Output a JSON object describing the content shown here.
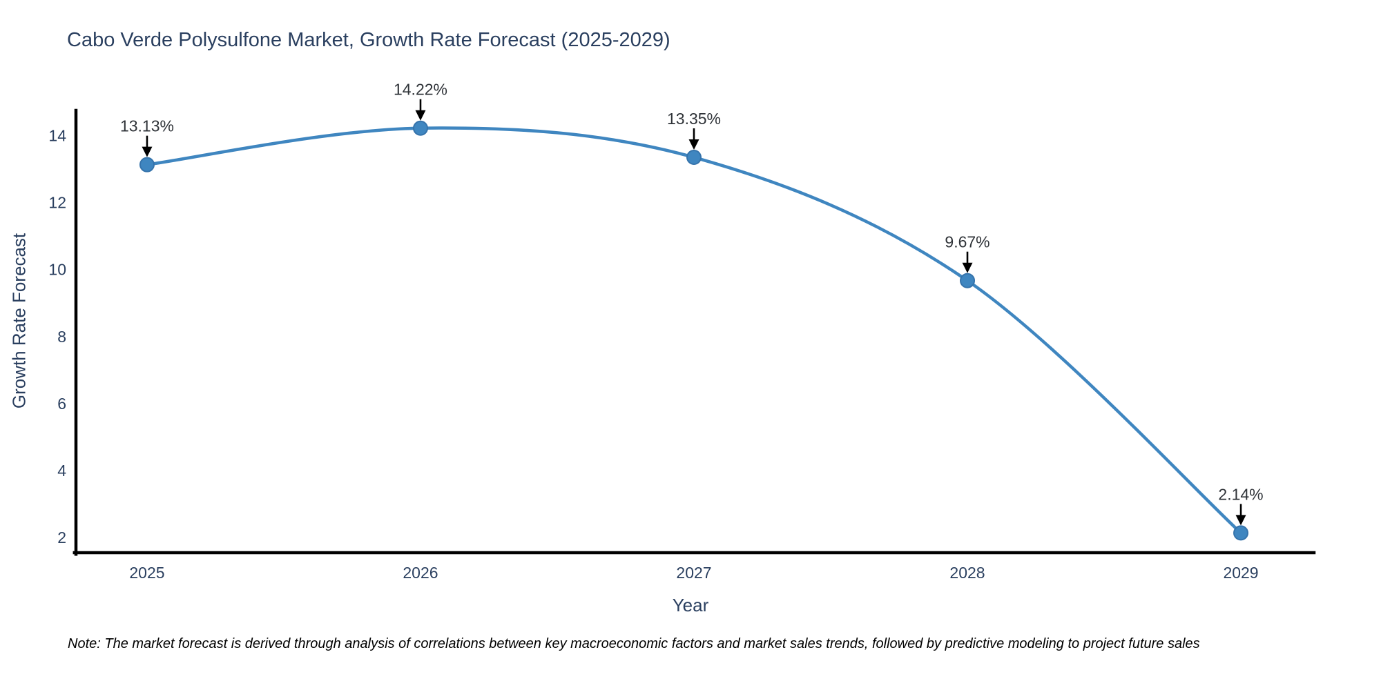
{
  "note": "Note: The market forecast is derived through analysis of correlations between key macroeconomic factors and market sales trends, followed by predictive modeling to project future sales",
  "chart_data": {
    "type": "line",
    "title": "Cabo Verde Polysulfone Market, Growth Rate Forecast (2025-2029)",
    "xlabel": "Year",
    "ylabel": "Growth Rate Forecast",
    "x": [
      2025,
      2026,
      2027,
      2028,
      2029
    ],
    "series": [
      {
        "name": "Growth Rate Forecast",
        "values": [
          13.13,
          14.22,
          13.35,
          9.67,
          2.14
        ]
      }
    ],
    "point_labels": [
      "13.13%",
      "14.22%",
      "13.35%",
      "9.67%",
      "2.14%"
    ],
    "xticks": [
      "2025",
      "2026",
      "2027",
      "2028",
      "2029"
    ],
    "yticks": [
      2,
      4,
      6,
      8,
      10,
      12,
      14
    ],
    "xlim": [
      2024.74,
      2029.26
    ],
    "ylim": [
      1.55,
      14.75
    ],
    "line_shape": "spline",
    "markers": true,
    "grid": false,
    "legend": "none",
    "line_color": "#3f86c0",
    "marker_color": "#3f86c0",
    "marker_edge_color": "#3573ab",
    "axis_color": "#000000",
    "tick_color": "#2a3f5f",
    "text_color": "#2a3f5f",
    "label_color": "#2f3338",
    "arrow_color": "#000000",
    "background": "#ffffff"
  }
}
